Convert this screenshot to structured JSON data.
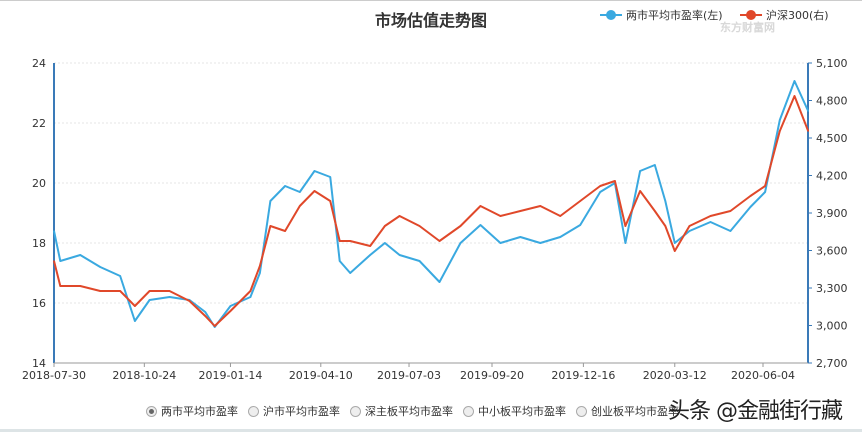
{
  "chart_data": {
    "type": "line",
    "title": "市场估值走势图",
    "legend_position": "top-right",
    "grid": true,
    "x": [
      "2018-07-30",
      "2018-08-05",
      "2018-08-24",
      "2018-09-12",
      "2018-10-01",
      "2018-10-15",
      "2018-10-29",
      "2018-11-17",
      "2018-12-06",
      "2018-12-21",
      "2018-12-30",
      "2019-01-14",
      "2019-02-02",
      "2019-02-11",
      "2019-02-21",
      "2019-03-07",
      "2019-03-21",
      "2019-04-04",
      "2019-04-19",
      "2019-04-28",
      "2019-05-08",
      "2019-05-27",
      "2019-06-10",
      "2019-06-24",
      "2019-07-13",
      "2019-08-01",
      "2019-08-21",
      "2019-09-09",
      "2019-09-28",
      "2019-10-17",
      "2019-11-05",
      "2019-11-24",
      "2019-12-13",
      "2020-01-01",
      "2020-01-15",
      "2020-01-25",
      "2020-02-08",
      "2020-02-22",
      "2020-03-03",
      "2020-03-12",
      "2020-03-26",
      "2020-04-15",
      "2020-05-04",
      "2020-05-23",
      "2020-06-06",
      "2020-06-20",
      "2020-07-04",
      "2020-07-17"
    ],
    "x_ticks": [
      "2018-07-30",
      "2018-10-24",
      "2019-01-14",
      "2019-04-10",
      "2019-07-03",
      "2019-09-20",
      "2019-12-16",
      "2020-03-12",
      "2020-06-04"
    ],
    "y_left": {
      "ylim": [
        14,
        24
      ],
      "ticks": [
        "24",
        "22",
        "20",
        "18",
        "16",
        "14"
      ]
    },
    "y_right": {
      "ylim": [
        2700,
        5100
      ],
      "ticks": [
        "5,100",
        "4,800",
        "4,500",
        "4,200",
        "3,900",
        "3,600",
        "3,300",
        "3,000",
        "2,700"
      ]
    },
    "series": [
      {
        "name": "两市平均市盈率(左)",
        "axis": "left",
        "color": "#3aa9e0",
        "values": [
          18.4,
          17.4,
          17.6,
          17.2,
          16.9,
          15.4,
          16.1,
          16.2,
          16.1,
          15.7,
          15.2,
          15.9,
          16.2,
          17.0,
          19.4,
          19.9,
          19.7,
          20.4,
          20.2,
          17.4,
          17.0,
          17.6,
          18.0,
          17.6,
          17.4,
          16.7,
          18.0,
          18.6,
          18.0,
          18.2,
          18.0,
          18.2,
          18.6,
          19.7,
          20.0,
          18.0,
          20.4,
          20.6,
          19.4,
          18.0,
          18.4,
          18.7,
          18.4,
          19.2,
          19.7,
          22.1,
          23.4,
          22.4
        ]
      },
      {
        "name": "沪深300(右)",
        "axis": "right",
        "color": "#e0482a",
        "values": [
          3516,
          3316,
          3316,
          3276,
          3276,
          3156,
          3276,
          3276,
          3196,
          3076,
          2996,
          3116,
          3276,
          3476,
          3796,
          3756,
          3956,
          4076,
          3996,
          3676,
          3676,
          3636,
          3796,
          3876,
          3796,
          3676,
          3796,
          3956,
          3876,
          3916,
          3956,
          3876,
          3996,
          4116,
          4156,
          3796,
          4076,
          3916,
          3796,
          3596,
          3796,
          3876,
          3916,
          4036,
          4116,
          4556,
          4836,
          4556
        ]
      }
    ]
  },
  "legend": {
    "items": [
      {
        "label": "两市平均市盈率(左)",
        "color": "#3aa9e0"
      },
      {
        "label": "沪深300(右)",
        "color": "#e0482a"
      }
    ]
  },
  "logo_text": "东方财富网 eastmoney.com",
  "radios": [
    {
      "label": "两市平均市盈率",
      "selected": true
    },
    {
      "label": "沪市平均市盈率",
      "selected": false
    },
    {
      "label": "深主板平均市盈率",
      "selected": false
    },
    {
      "label": "中小板平均市盈率",
      "selected": false
    },
    {
      "label": "创业板平均市盈率",
      "selected": false
    }
  ],
  "watermark": "头条 @金融街行藏"
}
